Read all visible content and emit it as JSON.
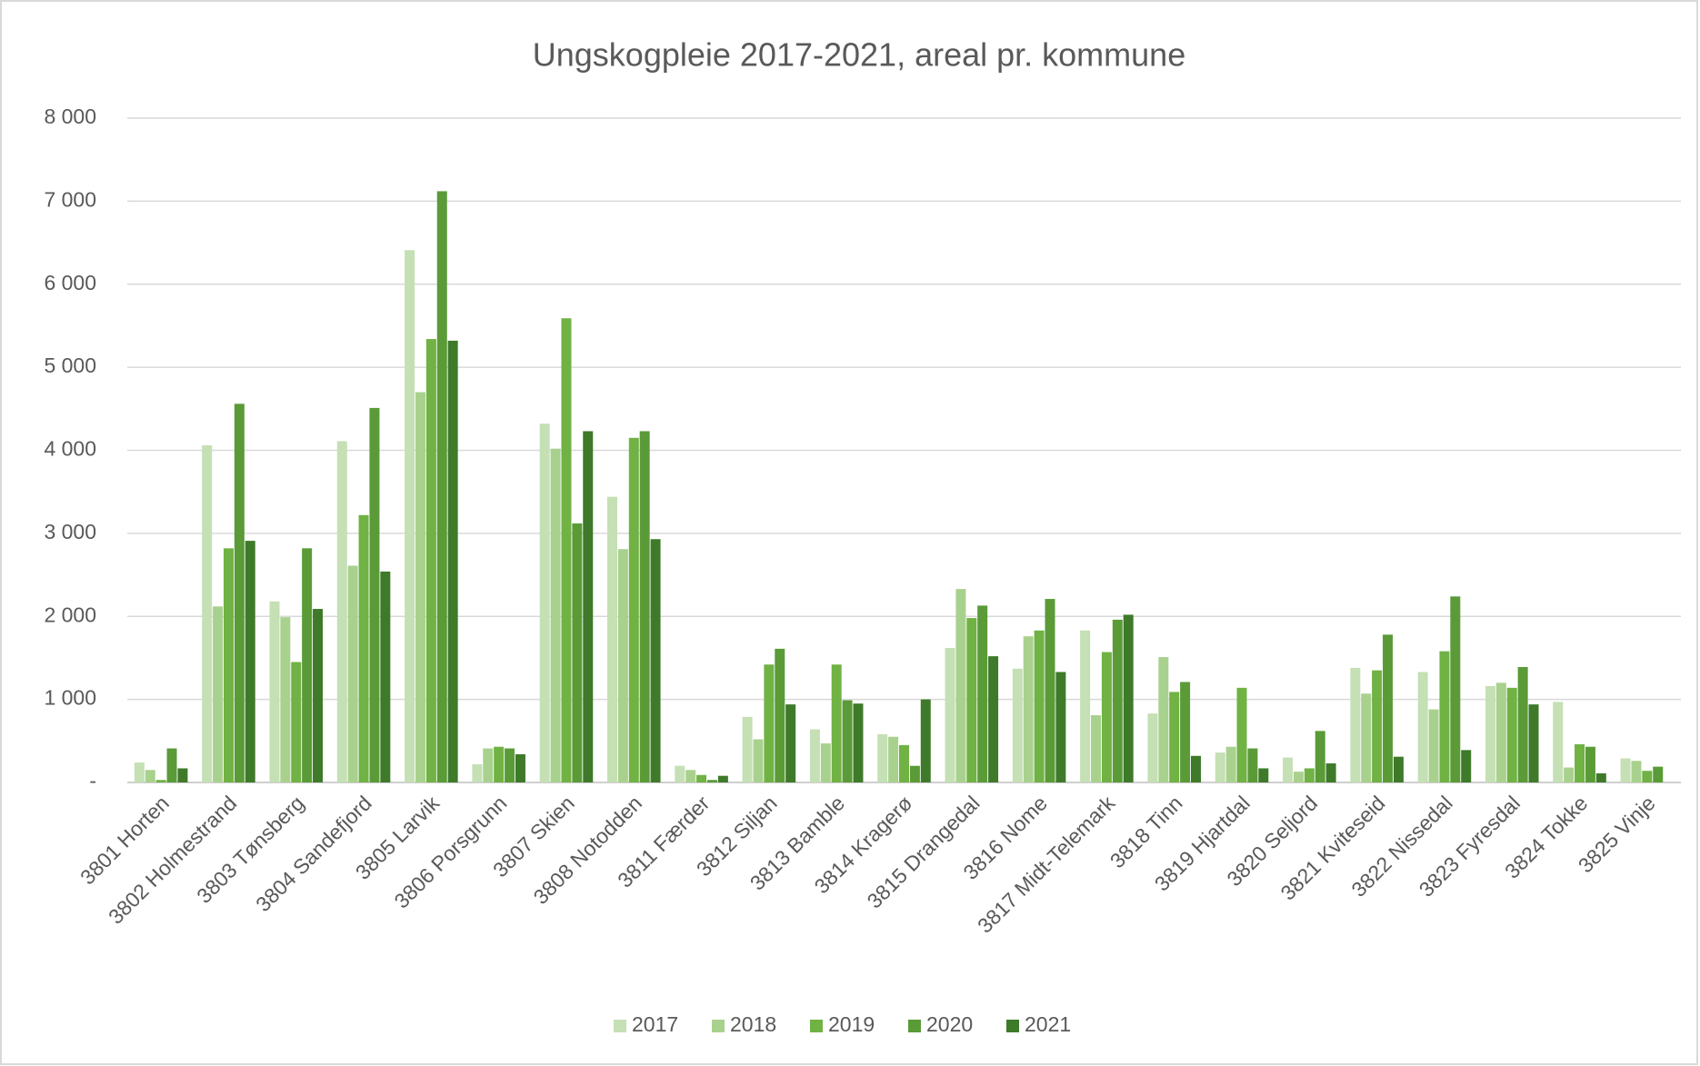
{
  "chart_data": {
    "type": "bar",
    "title": "Ungskogpleie 2017-2021, areal pr. kommune",
    "categories": [
      "3801 Horten",
      "3802 Holmestrand",
      "3803 Tønsberg",
      "3804 Sandefjord",
      "3805 Larvik",
      "3806 Porsgrunn",
      "3807 Skien",
      "3808 Notodden",
      "3811 Færder",
      "3812 Siljan",
      "3813 Bamble",
      "3814 Kragerø",
      "3815 Drangedal",
      "3816 Nome",
      "3817 Midt-Telemark",
      "3818 Tinn",
      "3819 Hjartdal",
      "3820 Seljord",
      "3821 Kviteseid",
      "3822 Nissedal",
      "3823 Fyresdal",
      "3824 Tokke",
      "3825 Vinje"
    ],
    "series": [
      {
        "name": "2017",
        "color": "#c5e0b4",
        "values": [
          240,
          4060,
          2180,
          4110,
          6410,
          220,
          4320,
          3440,
          200,
          790,
          640,
          580,
          1620,
          1370,
          1830,
          830,
          360,
          300,
          1380,
          1330,
          1160,
          970,
          290
        ]
      },
      {
        "name": "2018",
        "color": "#a9d18e",
        "values": [
          150,
          2120,
          1990,
          2610,
          4700,
          410,
          4020,
          2810,
          150,
          520,
          470,
          550,
          2330,
          1760,
          810,
          1510,
          430,
          130,
          1070,
          880,
          1200,
          180,
          260
        ]
      },
      {
        "name": "2019",
        "color": "#70b244",
        "values": [
          30,
          2820,
          1450,
          3220,
          5340,
          430,
          5590,
          4150,
          90,
          1420,
          1420,
          450,
          1980,
          1830,
          1570,
          1090,
          1140,
          170,
          1350,
          1580,
          1140,
          460,
          140
        ]
      },
      {
        "name": "2020",
        "color": "#5a9b38",
        "values": [
          410,
          4560,
          2820,
          4510,
          7120,
          410,
          3120,
          4230,
          30,
          1610,
          990,
          200,
          2130,
          2210,
          1960,
          1210,
          410,
          620,
          1780,
          2240,
          1390,
          430,
          190
        ]
      },
      {
        "name": "2021",
        "color": "#3e7a2a",
        "values": [
          170,
          2910,
          2090,
          2540,
          5320,
          340,
          4230,
          2930,
          80,
          940,
          950,
          1000,
          1520,
          1330,
          2020,
          320,
          170,
          230,
          310,
          390,
          940,
          110,
          0
        ]
      }
    ],
    "ylim": [
      0,
      8000
    ],
    "yticks": [
      {
        "value": 0,
        "label": "-"
      },
      {
        "value": 1000,
        "label": "1 000"
      },
      {
        "value": 2000,
        "label": "2 000"
      },
      {
        "value": 3000,
        "label": "3 000"
      },
      {
        "value": 4000,
        "label": "4 000"
      },
      {
        "value": 5000,
        "label": "5 000"
      },
      {
        "value": 6000,
        "label": "6 000"
      },
      {
        "value": 7000,
        "label": "7 000"
      },
      {
        "value": 8000,
        "label": "8 000"
      }
    ],
    "grid": true,
    "legend": "bottom"
  }
}
